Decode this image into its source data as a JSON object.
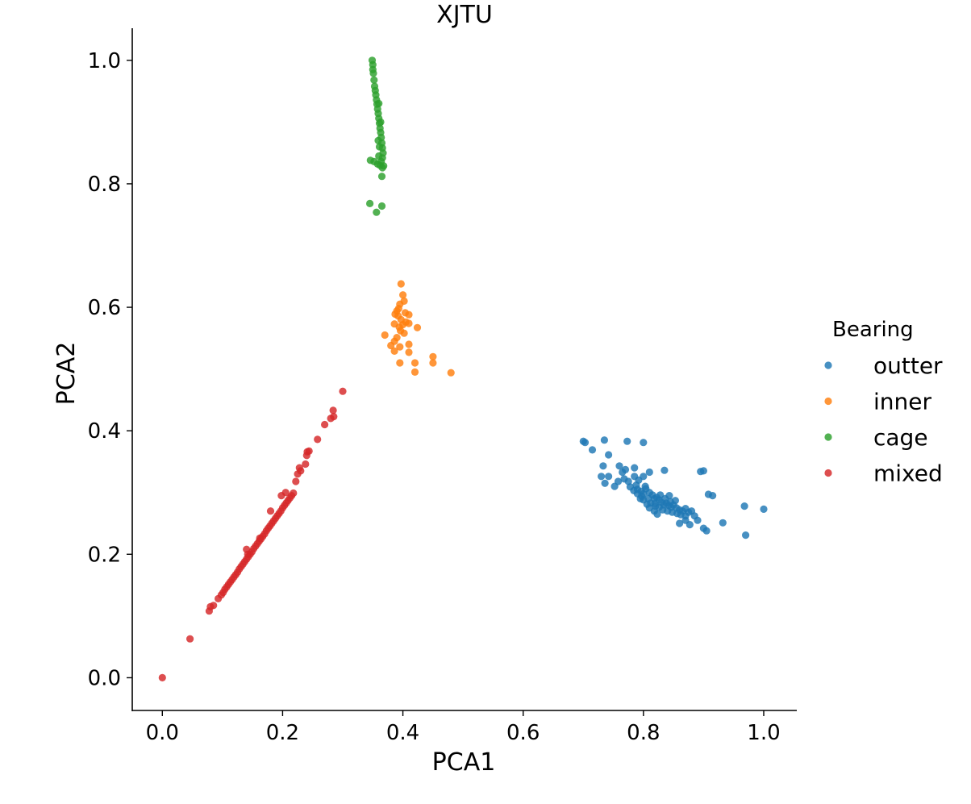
{
  "chart_data": {
    "type": "scatter",
    "title": "XJTU",
    "xlabel": "PCA1",
    "ylabel": "PCA2",
    "xlim": [
      -0.05,
      1.055
    ],
    "ylim": [
      -0.053,
      1.052
    ],
    "x_ticks": [
      "0.0",
      "0.2",
      "0.4",
      "0.6",
      "0.8",
      "1.0"
    ],
    "y_ticks": [
      "0.0",
      "0.2",
      "0.4",
      "0.6",
      "0.8",
      "1.0"
    ],
    "grid": false,
    "legend_title": "Bearing",
    "legend_position": "right",
    "series": [
      {
        "name": "outter",
        "color": "#1f77b4",
        "points": [
          [
            0.7,
            0.383
          ],
          [
            0.703,
            0.381
          ],
          [
            0.735,
            0.385
          ],
          [
            0.773,
            0.383
          ],
          [
            0.8,
            0.381
          ],
          [
            0.715,
            0.369
          ],
          [
            0.742,
            0.361
          ],
          [
            0.733,
            0.343
          ],
          [
            0.76,
            0.343
          ],
          [
            0.77,
            0.337
          ],
          [
            0.785,
            0.34
          ],
          [
            0.765,
            0.333
          ],
          [
            0.81,
            0.333
          ],
          [
            0.835,
            0.336
          ],
          [
            0.9,
            0.335
          ],
          [
            0.895,
            0.334
          ],
          [
            0.73,
            0.326
          ],
          [
            0.742,
            0.326
          ],
          [
            0.736,
            0.315
          ],
          [
            0.752,
            0.31
          ],
          [
            0.758,
            0.318
          ],
          [
            0.768,
            0.322
          ],
          [
            0.775,
            0.318
          ],
          [
            0.785,
            0.326
          ],
          [
            0.792,
            0.32
          ],
          [
            0.8,
            0.326
          ],
          [
            0.788,
            0.312
          ],
          [
            0.79,
            0.305
          ],
          [
            0.796,
            0.302
          ],
          [
            0.8,
            0.298
          ],
          [
            0.804,
            0.306
          ],
          [
            0.81,
            0.3
          ],
          [
            0.815,
            0.296
          ],
          [
            0.818,
            0.29
          ],
          [
            0.822,
            0.292
          ],
          [
            0.826,
            0.288
          ],
          [
            0.83,
            0.284
          ],
          [
            0.834,
            0.28
          ],
          [
            0.838,
            0.283
          ],
          [
            0.842,
            0.279
          ],
          [
            0.846,
            0.276
          ],
          [
            0.85,
            0.28
          ],
          [
            0.855,
            0.275
          ],
          [
            0.86,
            0.272
          ],
          [
            0.865,
            0.27
          ],
          [
            0.87,
            0.274
          ],
          [
            0.875,
            0.268
          ],
          [
            0.88,
            0.27
          ],
          [
            0.885,
            0.262
          ],
          [
            0.808,
            0.29
          ],
          [
            0.812,
            0.283
          ],
          [
            0.82,
            0.278
          ],
          [
            0.826,
            0.276
          ],
          [
            0.832,
            0.272
          ],
          [
            0.84,
            0.27
          ],
          [
            0.848,
            0.268
          ],
          [
            0.856,
            0.266
          ],
          [
            0.862,
            0.264
          ],
          [
            0.87,
            0.262
          ],
          [
            0.8,
            0.288
          ],
          [
            0.797,
            0.294
          ],
          [
            0.803,
            0.31
          ],
          [
            0.784,
            0.303
          ],
          [
            0.778,
            0.309
          ],
          [
            0.81,
            0.275
          ],
          [
            0.818,
            0.27
          ],
          [
            0.823,
            0.265
          ],
          [
            0.86,
            0.25
          ],
          [
            0.87,
            0.255
          ],
          [
            0.877,
            0.248
          ],
          [
            0.89,
            0.255
          ],
          [
            0.9,
            0.242
          ],
          [
            0.905,
            0.238
          ],
          [
            0.932,
            0.251
          ],
          [
            0.908,
            0.297
          ],
          [
            0.915,
            0.295
          ],
          [
            0.968,
            0.278
          ],
          [
            1.0,
            0.273
          ],
          [
            0.97,
            0.231
          ],
          [
            0.843,
            0.295
          ],
          [
            0.853,
            0.287
          ],
          [
            0.828,
            0.296
          ],
          [
            0.819,
            0.282
          ],
          [
            0.836,
            0.29
          ],
          [
            0.845,
            0.285
          ],
          [
            0.79,
            0.298
          ],
          [
            0.795,
            0.29
          ],
          [
            0.806,
            0.281
          ]
        ]
      },
      {
        "name": "inner",
        "color": "#ff7f0e",
        "points": [
          [
            0.397,
            0.638
          ],
          [
            0.4,
            0.62
          ],
          [
            0.402,
            0.61
          ],
          [
            0.395,
            0.605
          ],
          [
            0.393,
            0.598
          ],
          [
            0.39,
            0.594
          ],
          [
            0.387,
            0.589
          ],
          [
            0.392,
            0.586
          ],
          [
            0.397,
            0.58
          ],
          [
            0.404,
            0.591
          ],
          [
            0.41,
            0.588
          ],
          [
            0.405,
            0.576
          ],
          [
            0.4,
            0.572
          ],
          [
            0.394,
            0.568
          ],
          [
            0.386,
            0.573
          ],
          [
            0.41,
            0.574
          ],
          [
            0.424,
            0.567
          ],
          [
            0.396,
            0.562
          ],
          [
            0.402,
            0.558
          ],
          [
            0.37,
            0.555
          ],
          [
            0.39,
            0.551
          ],
          [
            0.386,
            0.545
          ],
          [
            0.38,
            0.538
          ],
          [
            0.395,
            0.536
          ],
          [
            0.41,
            0.54
          ],
          [
            0.386,
            0.529
          ],
          [
            0.41,
            0.527
          ],
          [
            0.45,
            0.52
          ],
          [
            0.395,
            0.51
          ],
          [
            0.42,
            0.51
          ],
          [
            0.45,
            0.51
          ],
          [
            0.42,
            0.495
          ],
          [
            0.48,
            0.494
          ]
        ]
      },
      {
        "name": "cage",
        "color": "#2ca02c",
        "points": [
          [
            0.349,
            1.0
          ],
          [
            0.35,
            0.993
          ],
          [
            0.35,
            0.985
          ],
          [
            0.351,
            0.979
          ],
          [
            0.352,
            0.968
          ],
          [
            0.353,
            0.958
          ],
          [
            0.354,
            0.951
          ],
          [
            0.355,
            0.944
          ],
          [
            0.356,
            0.936
          ],
          [
            0.357,
            0.929
          ],
          [
            0.358,
            0.921
          ],
          [
            0.359,
            0.914
          ],
          [
            0.36,
            0.906
          ],
          [
            0.361,
            0.898
          ],
          [
            0.362,
            0.89
          ],
          [
            0.363,
            0.883
          ],
          [
            0.364,
            0.875
          ],
          [
            0.365,
            0.866
          ],
          [
            0.366,
            0.858
          ],
          [
            0.367,
            0.85
          ],
          [
            0.366,
            0.842
          ],
          [
            0.364,
            0.836
          ],
          [
            0.362,
            0.83
          ],
          [
            0.368,
            0.829
          ],
          [
            0.366,
            0.826
          ],
          [
            0.358,
            0.832
          ],
          [
            0.352,
            0.836
          ],
          [
            0.346,
            0.838
          ],
          [
            0.36,
            0.845
          ],
          [
            0.361,
            0.86
          ],
          [
            0.359,
            0.87
          ],
          [
            0.363,
            0.9
          ],
          [
            0.36,
            0.93
          ],
          [
            0.365,
            0.812
          ],
          [
            0.345,
            0.768
          ],
          [
            0.365,
            0.764
          ],
          [
            0.356,
            0.754
          ]
        ]
      },
      {
        "name": "mixed",
        "color": "#d62728",
        "points": [
          [
            0.0,
            0.0
          ],
          [
            0.046,
            0.063
          ],
          [
            0.078,
            0.108
          ],
          [
            0.08,
            0.115
          ],
          [
            0.085,
            0.117
          ],
          [
            0.093,
            0.128
          ],
          [
            0.098,
            0.134
          ],
          [
            0.101,
            0.138
          ],
          [
            0.104,
            0.143
          ],
          [
            0.107,
            0.147
          ],
          [
            0.11,
            0.151
          ],
          [
            0.113,
            0.155
          ],
          [
            0.116,
            0.159
          ],
          [
            0.119,
            0.163
          ],
          [
            0.122,
            0.167
          ],
          [
            0.125,
            0.171
          ],
          [
            0.128,
            0.176
          ],
          [
            0.131,
            0.18
          ],
          [
            0.134,
            0.184
          ],
          [
            0.137,
            0.188
          ],
          [
            0.14,
            0.192
          ],
          [
            0.143,
            0.196
          ],
          [
            0.146,
            0.2
          ],
          [
            0.149,
            0.204
          ],
          [
            0.152,
            0.209
          ],
          [
            0.155,
            0.213
          ],
          [
            0.158,
            0.217
          ],
          [
            0.161,
            0.221
          ],
          [
            0.164,
            0.225
          ],
          [
            0.167,
            0.229
          ],
          [
            0.17,
            0.233
          ],
          [
            0.173,
            0.238
          ],
          [
            0.176,
            0.242
          ],
          [
            0.179,
            0.246
          ],
          [
            0.182,
            0.25
          ],
          [
            0.185,
            0.254
          ],
          [
            0.188,
            0.258
          ],
          [
            0.191,
            0.262
          ],
          [
            0.194,
            0.266
          ],
          [
            0.197,
            0.27
          ],
          [
            0.2,
            0.275
          ],
          [
            0.203,
            0.279
          ],
          [
            0.206,
            0.283
          ],
          [
            0.209,
            0.287
          ],
          [
            0.212,
            0.291
          ],
          [
            0.215,
            0.295
          ],
          [
            0.218,
            0.299
          ],
          [
            0.14,
            0.208
          ],
          [
            0.142,
            0.2
          ],
          [
            0.162,
            0.226
          ],
          [
            0.18,
            0.27
          ],
          [
            0.205,
            0.3
          ],
          [
            0.198,
            0.295
          ],
          [
            0.222,
            0.318
          ],
          [
            0.225,
            0.33
          ],
          [
            0.23,
            0.335
          ],
          [
            0.228,
            0.34
          ],
          [
            0.238,
            0.346
          ],
          [
            0.24,
            0.36
          ],
          [
            0.241,
            0.366
          ],
          [
            0.244,
            0.367
          ],
          [
            0.258,
            0.386
          ],
          [
            0.27,
            0.41
          ],
          [
            0.28,
            0.42
          ],
          [
            0.285,
            0.423
          ],
          [
            0.284,
            0.433
          ],
          [
            0.3,
            0.464
          ]
        ]
      }
    ]
  }
}
